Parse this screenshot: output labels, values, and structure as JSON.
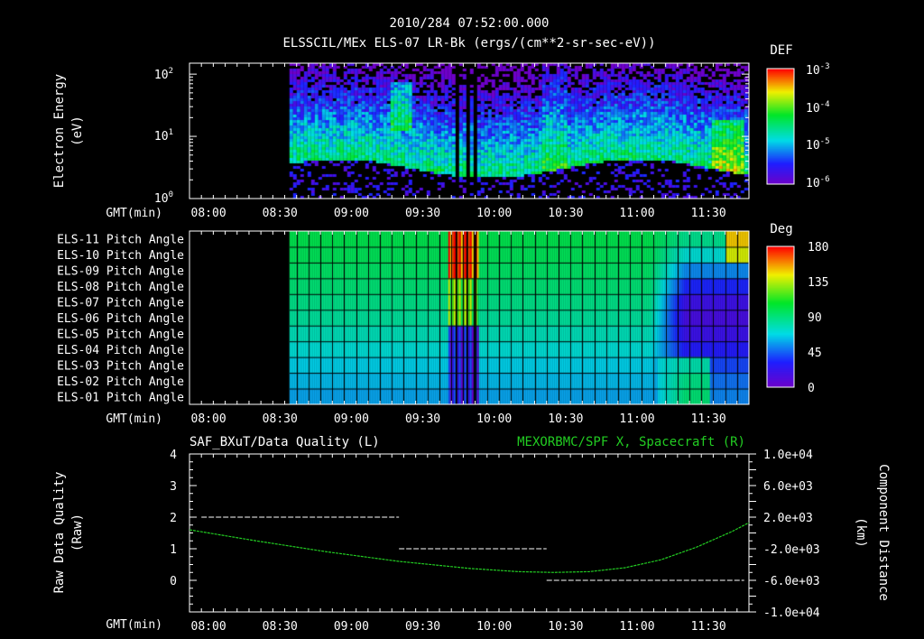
{
  "title": "2010/284 07:52:00.000",
  "subtitle": "ELSSCIL/MEx ELS-07 LR-Bk  (ergs/(cm**2-sr-sec-eV))",
  "chart_data": [
    {
      "type": "heatmap",
      "name": "spectrogram",
      "ylabel_line1": "Electron Energy",
      "ylabel_line2": "(eV)",
      "yscale": "log",
      "ylim": [
        1,
        150
      ],
      "yticks": [
        "10^0",
        "10^1",
        "10^2"
      ],
      "ytick_values": [
        1,
        10,
        100
      ],
      "xaxis_label": "GMT(min)",
      "xlim_min": [
        472,
        707
      ],
      "xticks": [
        "08:00",
        "08:30",
        "09:00",
        "09:30",
        "10:00",
        "10:30",
        "11:00",
        "11:30"
      ],
      "data_start_min": 514,
      "gaps_min": [
        [
          583,
          584
        ],
        [
          588,
          589
        ],
        [
          591,
          592
        ]
      ],
      "colorbar": {
        "label": "DEF",
        "ticks": [
          "10^-3",
          "10^-4",
          "10^-5",
          "10^-6"
        ],
        "range_log10": [
          -6.2,
          -3
        ]
      }
    },
    {
      "type": "heatmap",
      "name": "pitch-angle",
      "rows": [
        "ELS-11 Pitch Angle",
        "ELS-10 Pitch Angle",
        "ELS-09 Pitch Angle",
        "ELS-08 Pitch Angle",
        "ELS-07 Pitch Angle",
        "ELS-06 Pitch Angle",
        "ELS-05 Pitch Angle",
        "ELS-04 Pitch Angle",
        "ELS-03 Pitch Angle",
        "ELS-02 Pitch Angle",
        "ELS-01 Pitch Angle"
      ],
      "row_base_deg": [
        100,
        98,
        95,
        92,
        88,
        84,
        78,
        72,
        66,
        62,
        58
      ],
      "xaxis_label": "GMT(min)",
      "xticks": [
        "08:00",
        "08:30",
        "09:00",
        "09:30",
        "10:00",
        "10:30",
        "11:00",
        "11:30"
      ],
      "data_start_min": 514,
      "colorbar": {
        "label": "Deg",
        "ticks": [
          "180",
          "135",
          "90",
          "45",
          "0"
        ],
        "range": [
          0,
          180
        ]
      }
    },
    {
      "type": "line",
      "name": "quality-and-position",
      "left_title": "SAF_BXuT/Data Quality (L)",
      "right_title": "MEXORBMC/SPF X, Spacecraft (R)",
      "ylabel_left_line1": "Raw Data Quality",
      "ylabel_left_line2": "(Raw)",
      "ylabel_right_line1": "Component Distance",
      "ylabel_right_line2": "(km)",
      "ylim_left": [
        -1,
        4
      ],
      "yticks_left": [
        "4",
        "3",
        "2",
        "1",
        "0"
      ],
      "ylim_right": [
        -10000,
        10000
      ],
      "yticks_right": [
        "1.0e+04",
        "6.0e+03",
        "2.0e+03",
        "-2.0e+03",
        "-6.0e+03",
        "-1.0e+04"
      ],
      "xaxis_label": "GMT(min)",
      "xticks": [
        "08:00",
        "08:30",
        "09:00",
        "09:30",
        "10:00",
        "10:30",
        "11:00",
        "11:30"
      ],
      "series": [
        {
          "name": "Data Quality",
          "axis": "left",
          "color": "#ffffff",
          "segments": [
            {
              "x": [
                477,
                560
              ],
              "y": 2
            },
            {
              "x": [
                560,
                622
              ],
              "y": 1
            },
            {
              "x": [
                622,
                705
              ],
              "y": 0
            }
          ]
        },
        {
          "name": "SPF X",
          "axis": "right",
          "color": "#22cc22",
          "x": [
            472,
            500,
            530,
            560,
            590,
            610,
            625,
            640,
            655,
            670,
            685,
            700,
            707
          ],
          "y": [
            400,
            -1000,
            -2400,
            -3600,
            -4500,
            -4900,
            -5000,
            -4900,
            -4400,
            -3400,
            -1800,
            200,
            1300
          ]
        }
      ]
    }
  ]
}
